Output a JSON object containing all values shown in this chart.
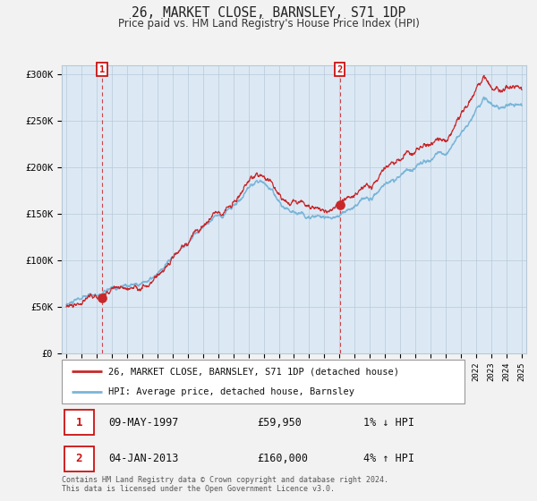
{
  "title": "26, MARKET CLOSE, BARNSLEY, S71 1DP",
  "subtitle": "Price paid vs. HM Land Registry's House Price Index (HPI)",
  "legend_line1": "26, MARKET CLOSE, BARNSLEY, S71 1DP (detached house)",
  "legend_line2": "HPI: Average price, detached house, Barnsley",
  "transaction1_date": "09-MAY-1997",
  "transaction1_price": "£59,950",
  "transaction1_hpi": "1% ↓ HPI",
  "transaction2_date": "04-JAN-2013",
  "transaction2_price": "£160,000",
  "transaction2_hpi": "4% ↑ HPI",
  "footer": "Contains HM Land Registry data © Crown copyright and database right 2024.\nThis data is licensed under the Open Government Licence v3.0.",
  "hpi_color": "#7ab5d8",
  "price_color": "#c8282a",
  "dot_color": "#c8282a",
  "bg_color": "#dce9f5",
  "grid_color": "#b8c8d8",
  "dashed_line_color": "#c8282a",
  "ylim": [
    0,
    310000
  ],
  "yticks": [
    0,
    50000,
    100000,
    150000,
    200000,
    250000,
    300000
  ],
  "ytick_labels": [
    "£0",
    "£50K",
    "£100K",
    "£150K",
    "£200K",
    "£250K",
    "£300K"
  ],
  "year_start": 1995,
  "year_end": 2025,
  "transaction1_year": 1997.36,
  "transaction1_value": 59950,
  "transaction2_year": 2013.01,
  "transaction2_value": 160000
}
